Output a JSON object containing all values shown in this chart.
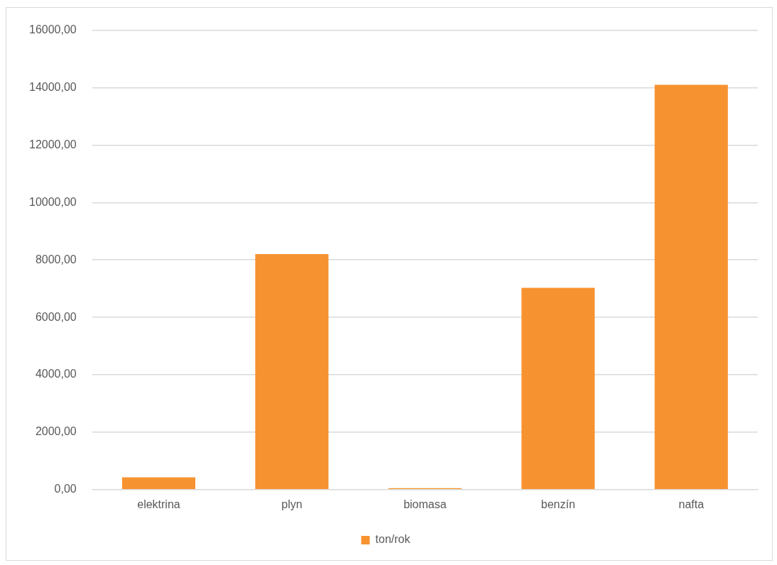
{
  "chart_data": {
    "type": "bar",
    "categories": [
      "elektrina",
      "plyn",
      "biomasa",
      "benzín",
      "nafta"
    ],
    "series": [
      {
        "name": "ton/rok",
        "color": "#f79230",
        "values": [
          430,
          8200,
          50,
          7030,
          14100
        ]
      }
    ],
    "ylim": [
      0,
      16000
    ],
    "yticks": [
      {
        "value": 0,
        "label": "0,00"
      },
      {
        "value": 2000,
        "label": "2000,00"
      },
      {
        "value": 4000,
        "label": "4000,00"
      },
      {
        "value": 6000,
        "label": "6000,00"
      },
      {
        "value": 8000,
        "label": "8000,00"
      },
      {
        "value": 10000,
        "label": "10000,00"
      },
      {
        "value": 12000,
        "label": "12000,00"
      },
      {
        "value": 14000,
        "label": "14000,00"
      },
      {
        "value": 16000,
        "label": "16000,00"
      }
    ],
    "grid": "y",
    "legend": "bottom"
  }
}
